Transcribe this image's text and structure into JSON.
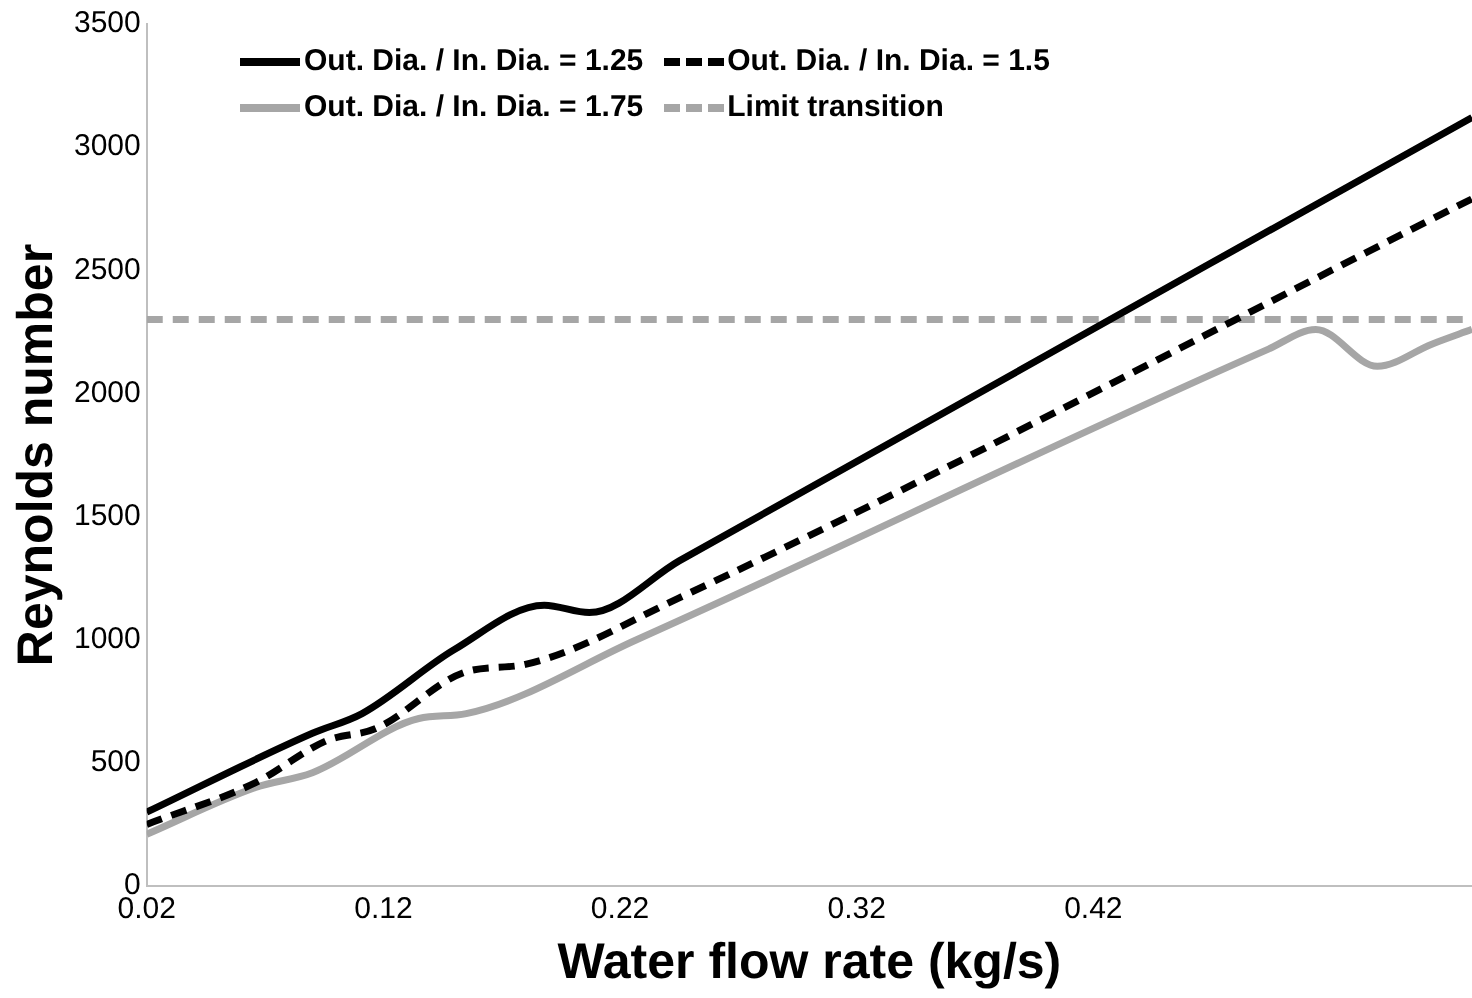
{
  "chart_data": {
    "type": "line",
    "xlabel": "Water flow rate (kg/s)",
    "ylabel": "Reynolds number",
    "xlim": [
      0.02,
      0.58
    ],
    "xticks": [
      0.02,
      0.12,
      0.22,
      0.32,
      0.42
    ],
    "ylim": [
      0,
      3500
    ],
    "yticks": [
      0,
      500,
      1000,
      1500,
      2000,
      2500,
      3000,
      3500
    ],
    "grid": false,
    "legend": "top left",
    "marker": "none",
    "series": [
      {
        "name": "Out. Dia. / In. Dia. = 1.25",
        "color": "#000000",
        "line_style": "solid",
        "x": [
          0.02,
          0.09,
          0.111,
          0.15,
          0.188,
          0.207,
          0.245,
          0.58
        ],
        "values": [
          300,
          620,
          700,
          960,
          1140,
          1110,
          1320,
          3120
        ]
      },
      {
        "name": "Out. Dia. / In. Dia. = 1.5",
        "color": "#000000",
        "line_style": "dashed",
        "x": [
          0.02,
          0.066,
          0.096,
          0.117,
          0.155,
          0.18,
          0.245,
          0.58
        ],
        "values": [
          250,
          420,
          590,
          640,
          870,
          900,
          1170,
          2790
        ]
      },
      {
        "name": "Out. Dia. / In. Dia. = 1.75",
        "color": "#a6a6a6",
        "line_style": "solid",
        "x": [
          0.02,
          0.066,
          0.09,
          0.135,
          0.155,
          0.227,
          0.494,
          0.514,
          0.54,
          0.563,
          0.58
        ],
        "values": [
          210,
          400,
          460,
          680,
          700,
          1000,
          2180,
          2260,
          2110,
          2200,
          2260
        ]
      }
    ],
    "ref_lines": [
      {
        "axis": "y",
        "value": 2300,
        "label": "Limit transition",
        "color": "#a6a6a6",
        "line_style": "dashed"
      }
    ]
  }
}
